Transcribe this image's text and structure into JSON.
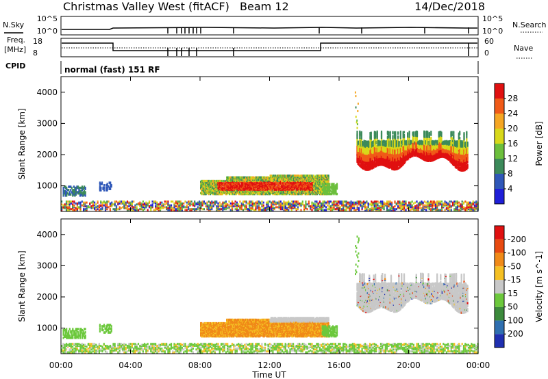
{
  "header": {
    "station": "Christmas Valley West (fitACF)",
    "beam": "Beam 12",
    "date": "14/Dec/2018"
  },
  "aux": {
    "nsky_label": "N.Sky",
    "nsearch_label": "N.Search",
    "freq_label_1": "Freq.",
    "freq_label_2": "[MHz]",
    "nave_label": "Nave",
    "cpid_label": "CPID",
    "cpid_text": "normal (fast) 151 RF",
    "noise_ticks": [
      "10^5",
      "10^0"
    ],
    "freq_ticks": [
      "18",
      "8"
    ],
    "nave_ticks": [
      "60",
      "0"
    ]
  },
  "chart_data": [
    {
      "type": "heatmap",
      "title": "",
      "xlabel": "Time UT",
      "ylabel": "Slant Range [km]",
      "x_ticks": [
        "00:00",
        "04:00",
        "08:00",
        "12:00",
        "16:00",
        "20:00",
        "00:00"
      ],
      "x_tick_hours": [
        0,
        4,
        8,
        12,
        16,
        20,
        24
      ],
      "xlim_hours": [
        0,
        24
      ],
      "y_ticks": [
        1000,
        2000,
        3000,
        4000
      ],
      "ylim": [
        180,
        4500
      ],
      "colorbar_label": "Power [dB]",
      "colorbar_ticks": [
        "4",
        "8",
        "12",
        "16",
        "20",
        "24",
        "28"
      ],
      "colors": [
        "#1f1fd8",
        "#2f57b8",
        "#3c8a5a",
        "#6cbf3c",
        "#d8d81a",
        "#f5a623",
        "#f05a18",
        "#e01010"
      ]
    },
    {
      "type": "heatmap",
      "title": "",
      "xlabel": "Time UT",
      "ylabel": "Slant Range [km]",
      "x_ticks": [
        "00:00",
        "04:00",
        "08:00",
        "12:00",
        "16:00",
        "20:00",
        "00:00"
      ],
      "x_tick_hours": [
        0,
        4,
        8,
        12,
        16,
        20,
        24
      ],
      "xlim_hours": [
        0,
        24
      ],
      "y_ticks": [
        1000,
        2000,
        3000,
        4000
      ],
      "ylim": [
        180,
        4500
      ],
      "colorbar_label": "Velocity [m s^-1]",
      "colorbar_ticks": [
        "200",
        "100",
        "50",
        "15",
        "-15",
        "-50",
        "-100",
        "-200"
      ],
      "colors": [
        "#1f2fb0",
        "#2f6fb0",
        "#3c8a3c",
        "#6cc83c",
        "#c8c8c8",
        "#f5c023",
        "#f08a18",
        "#e84a10",
        "#e01010"
      ]
    }
  ]
}
